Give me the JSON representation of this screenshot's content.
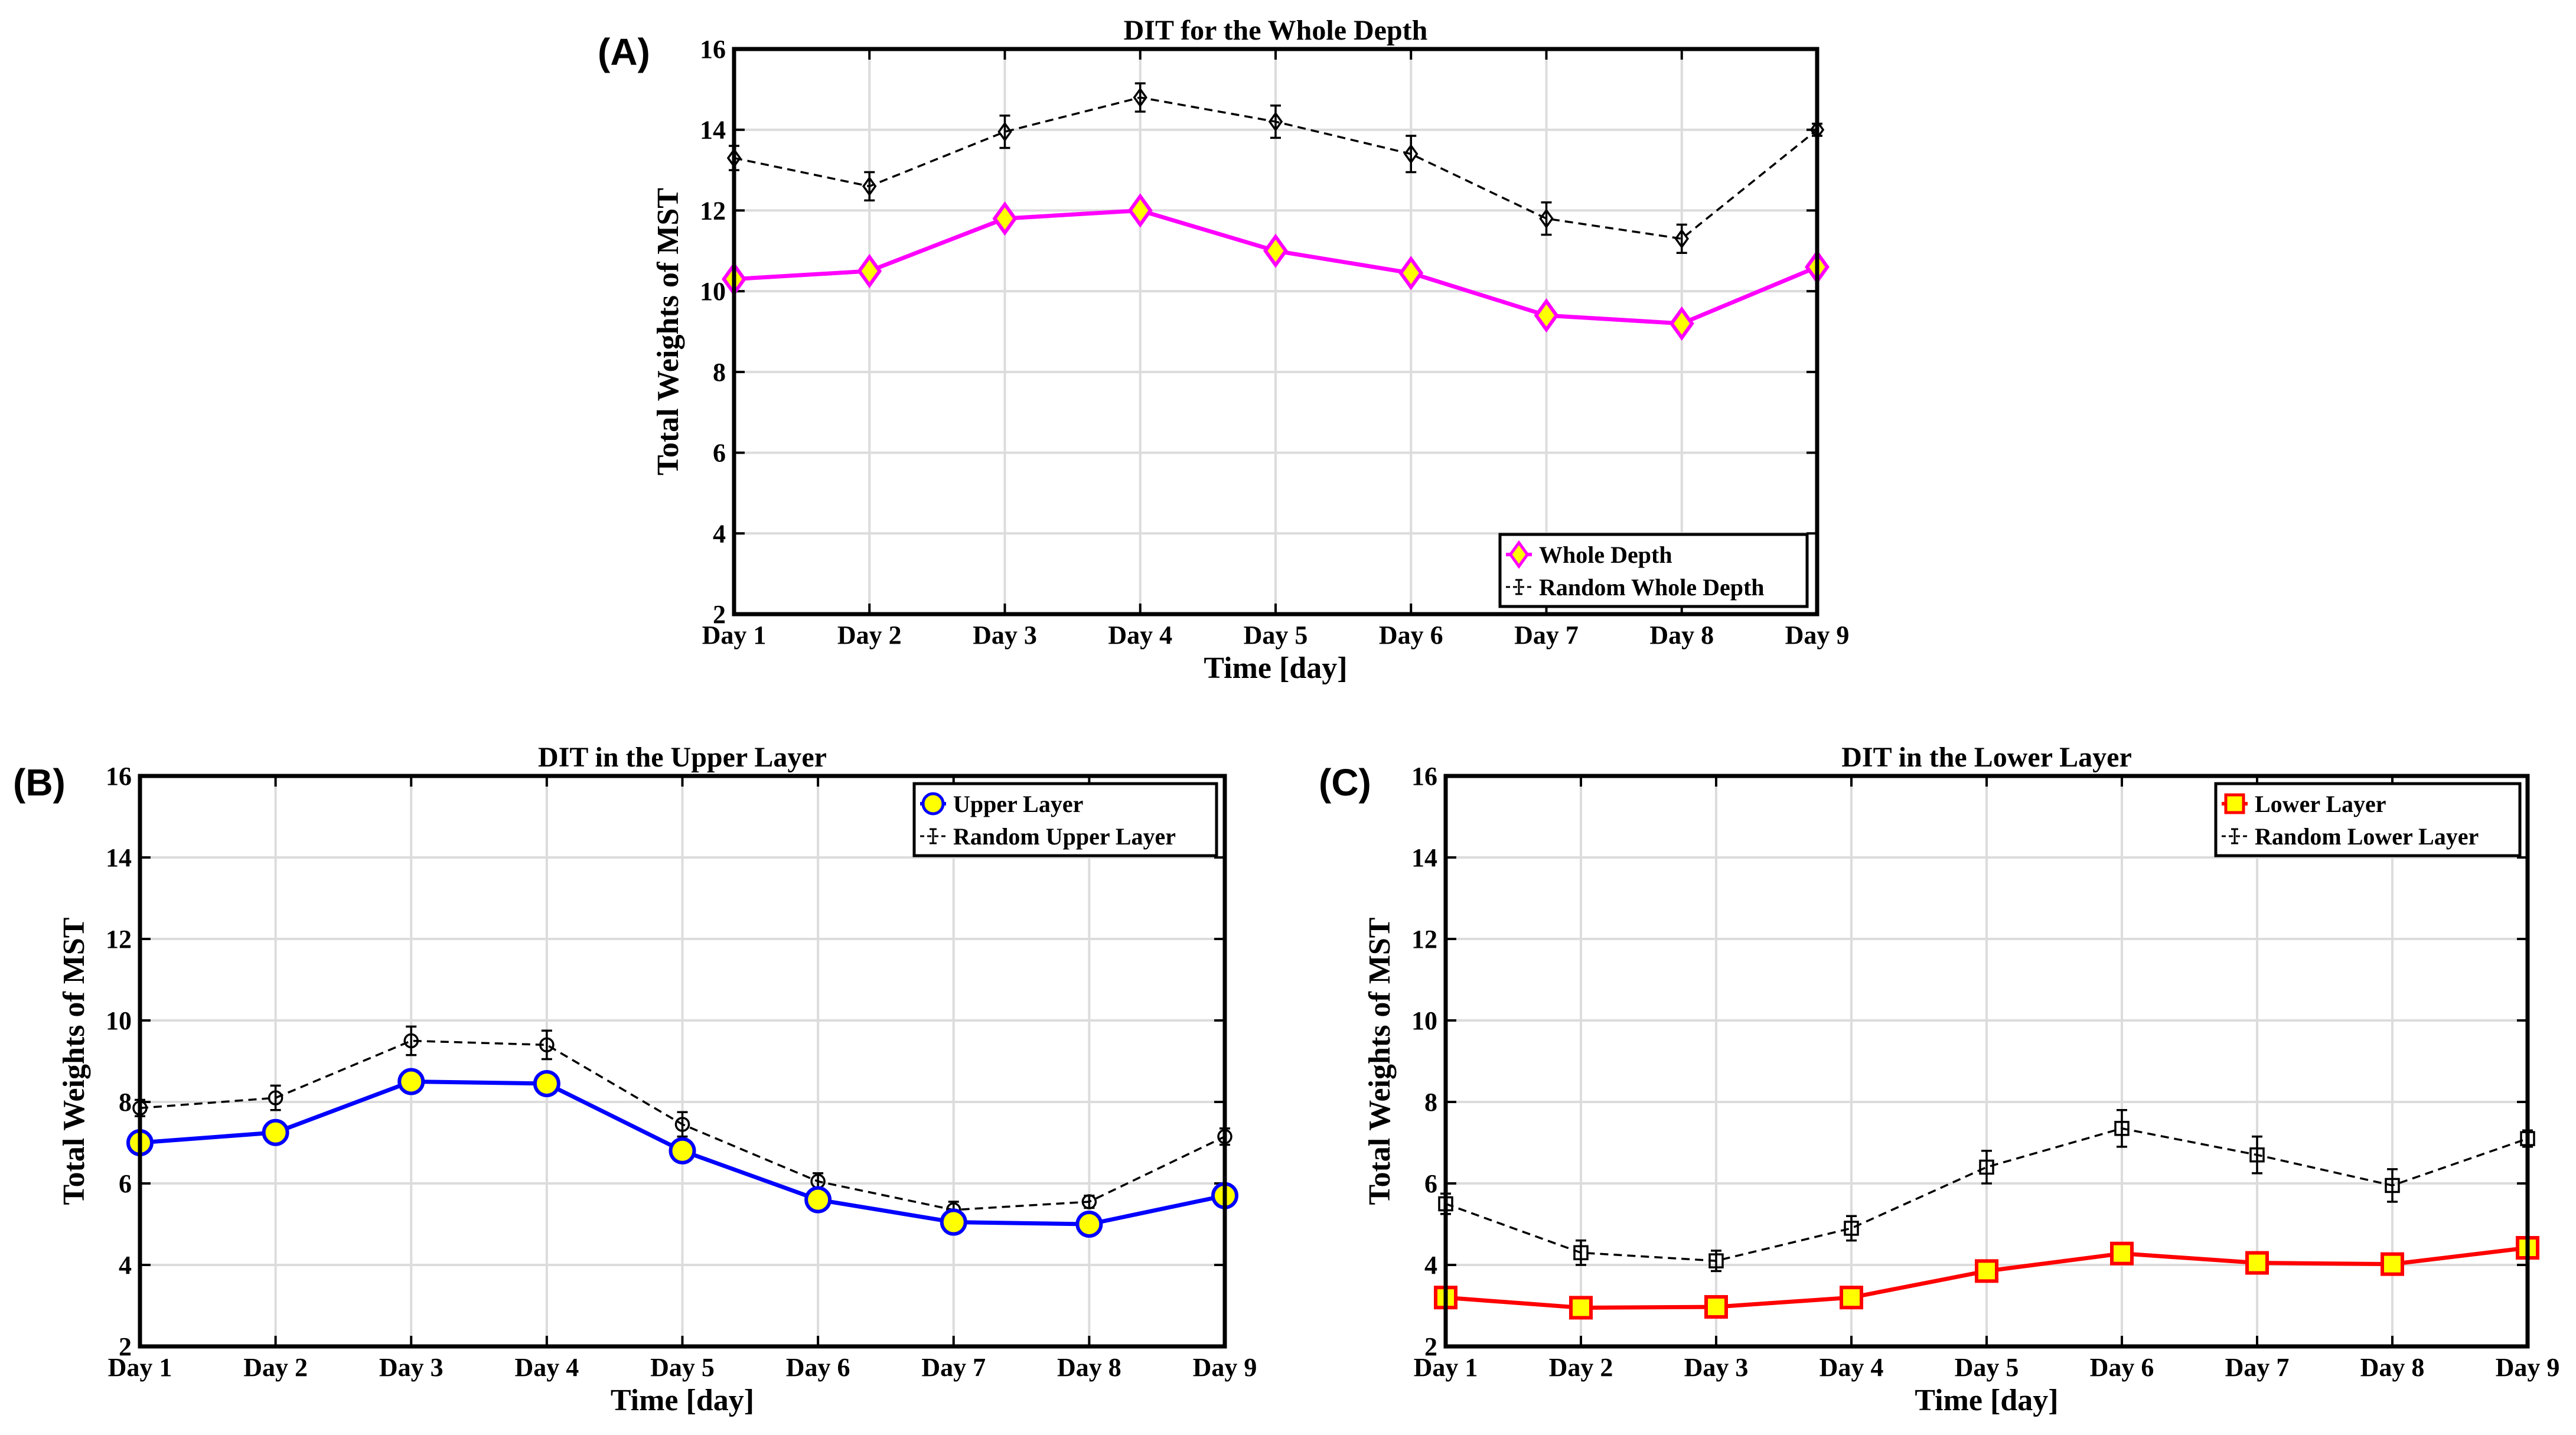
{
  "chart_data": [
    {
      "panel": "(A)",
      "type": "line",
      "title": "DIT for the Whole Depth",
      "xlabel": "Time [day]",
      "ylabel": "Total Weights of MST",
      "categories": [
        "Day 1",
        "Day 2",
        "Day 3",
        "Day 4",
        "Day 5",
        "Day 6",
        "Day 7",
        "Day 8",
        "Day 9"
      ],
      "ylim": [
        2,
        16
      ],
      "yticks": [
        "2",
        "4",
        "6",
        "8",
        "10",
        "12",
        "14",
        "16"
      ],
      "grid": true,
      "legend": "bottom-right",
      "series": [
        {
          "name": "Whole Depth",
          "color": "#ff00ff",
          "marker": "diamond",
          "marker_fill": "#ffff00",
          "style": "solid",
          "values": [
            10.3,
            10.5,
            11.8,
            12.0,
            11.0,
            10.45,
            9.4,
            9.2,
            10.6
          ]
        },
        {
          "name": "Random Whole Depth",
          "color": "#000000",
          "marker": "diamond",
          "style": "dashed",
          "values": [
            13.3,
            12.6,
            13.95,
            14.8,
            14.2,
            13.4,
            11.8,
            11.3,
            14.0
          ],
          "errors": [
            0.3,
            0.35,
            0.4,
            0.35,
            0.4,
            0.45,
            0.4,
            0.35,
            0.15
          ]
        }
      ]
    },
    {
      "panel": "(B)",
      "type": "line",
      "title": "DIT in the Upper Layer",
      "xlabel": "Time [day]",
      "ylabel": "Total Weights of MST",
      "categories": [
        "Day 1",
        "Day 2",
        "Day 3",
        "Day 4",
        "Day 5",
        "Day 6",
        "Day 7",
        "Day 8",
        "Day 9"
      ],
      "ylim": [
        2,
        16
      ],
      "yticks": [
        "2",
        "4",
        "6",
        "8",
        "10",
        "12",
        "14",
        "16"
      ],
      "grid": true,
      "legend": "top-right",
      "series": [
        {
          "name": "Upper Layer",
          "color": "#0000ff",
          "marker": "circle",
          "marker_fill": "#ffff00",
          "style": "solid",
          "values": [
            7.0,
            7.25,
            8.5,
            8.45,
            6.8,
            5.6,
            5.05,
            5.0,
            5.7
          ]
        },
        {
          "name": "Random Upper Layer",
          "color": "#000000",
          "marker": "circle",
          "style": "dashed",
          "values": [
            7.85,
            8.1,
            9.5,
            9.4,
            7.45,
            6.05,
            5.35,
            5.55,
            7.15
          ],
          "errors": [
            0.2,
            0.3,
            0.35,
            0.35,
            0.3,
            0.2,
            0.2,
            0.15,
            0.2
          ]
        }
      ]
    },
    {
      "panel": "(C)",
      "type": "line",
      "title": "DIT in the Lower Layer",
      "xlabel": "Time [day]",
      "ylabel": "Total Weights of MST",
      "categories": [
        "Day 1",
        "Day 2",
        "Day 3",
        "Day 4",
        "Day 5",
        "Day 6",
        "Day 7",
        "Day 8",
        "Day 9"
      ],
      "ylim": [
        2,
        16
      ],
      "yticks": [
        "2",
        "4",
        "6",
        "8",
        "10",
        "12",
        "14",
        "16"
      ],
      "grid": true,
      "legend": "top-right",
      "series": [
        {
          "name": "Lower Layer",
          "color": "#ff0000",
          "marker": "square",
          "marker_fill": "#ffff00",
          "style": "solid",
          "values": [
            3.2,
            2.95,
            2.97,
            3.2,
            3.85,
            4.28,
            4.05,
            4.02,
            4.42
          ]
        },
        {
          "name": "Random Lower Layer",
          "color": "#000000",
          "marker": "square",
          "style": "dashed",
          "values": [
            5.5,
            4.3,
            4.1,
            4.9,
            6.4,
            7.35,
            6.7,
            5.95,
            7.1
          ],
          "errors": [
            0.25,
            0.3,
            0.25,
            0.3,
            0.4,
            0.45,
            0.45,
            0.4,
            0.2
          ]
        }
      ]
    }
  ]
}
